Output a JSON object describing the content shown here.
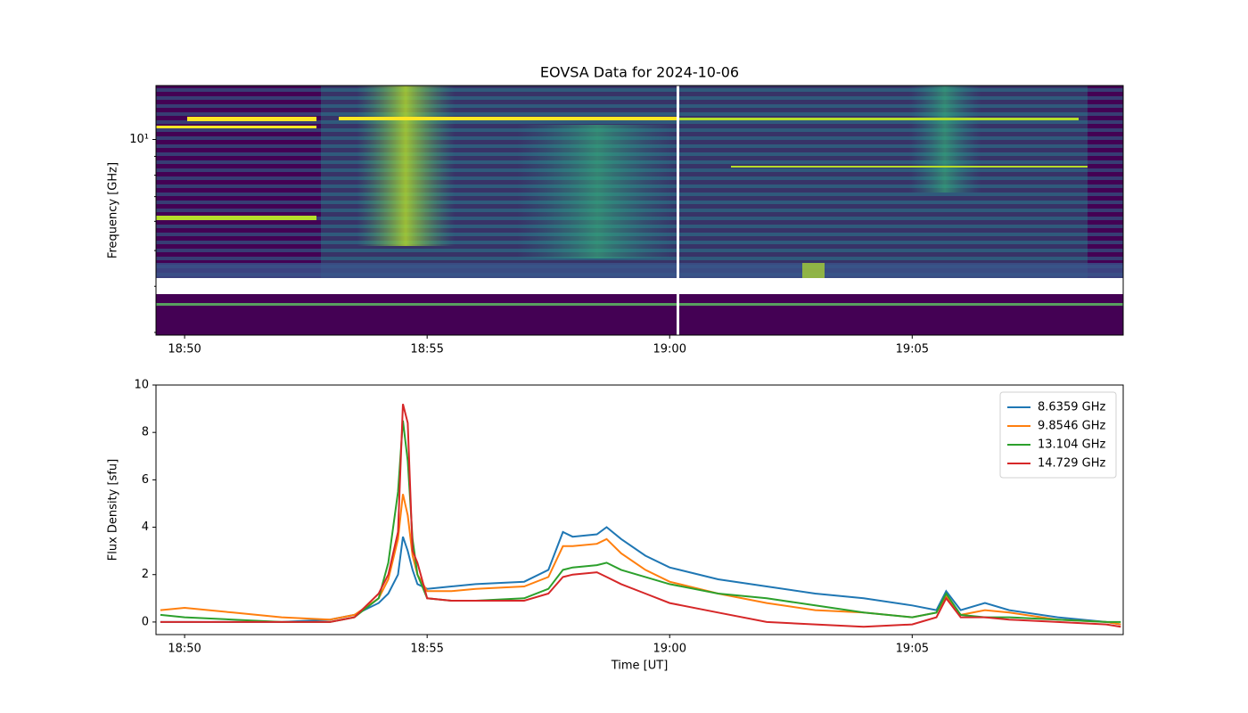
{
  "chart_data": [
    {
      "type": "heatmap",
      "title": "EOVSA Data for 2024-10-06",
      "ylabel": "Frequency [GHz]",
      "ylog": true,
      "xlim": [
        1129.41,
        1149.35
      ],
      "xticks": [
        {
          "value": 1130,
          "label": "18:50"
        },
        {
          "value": 1135,
          "label": "18:55"
        },
        {
          "value": 1140,
          "label": "19:00"
        },
        {
          "value": 1145,
          "label": "19:05"
        }
      ],
      "ylim": [
        2.95,
        14
      ],
      "yticks": [
        {
          "value": 10,
          "label": "10¹"
        }
      ],
      "yminorticks": [
        3,
        4,
        5,
        6,
        7,
        8,
        9
      ]
    },
    {
      "type": "line",
      "xlabel": "Time [UT]",
      "ylabel": "Flux Density [sfu]",
      "legend": "upper right",
      "xlim": [
        1129.41,
        1149.35
      ],
      "xticks": [
        {
          "value": 1130,
          "label": "18:50"
        },
        {
          "value": 1135,
          "label": "18:55"
        },
        {
          "value": 1140,
          "label": "19:00"
        },
        {
          "value": 1145,
          "label": "19:05"
        }
      ],
      "ylim": [
        -0.53,
        10
      ],
      "yticks": [
        0,
        2,
        4,
        6,
        8,
        10
      ],
      "x": [
        1129.5,
        1130,
        1131,
        1132,
        1133,
        1133.5,
        1134,
        1134.2,
        1134.4,
        1134.5,
        1134.6,
        1134.7,
        1134.8,
        1135,
        1135.5,
        1136,
        1137,
        1137.5,
        1137.8,
        1138,
        1138.5,
        1138.7,
        1139,
        1139.5,
        1140,
        1141,
        1142,
        1143,
        1144,
        1145,
        1145.5,
        1145.7,
        1146,
        1146.5,
        1147,
        1148,
        1149,
        1149.3
      ],
      "series": [
        {
          "name": "8.6359 GHz",
          "color": "#1f77b4",
          "values": [
            0.0,
            0.0,
            0.0,
            0.0,
            0.1,
            0.3,
            0.8,
            1.2,
            2.0,
            3.6,
            3.0,
            2.2,
            1.6,
            1.4,
            1.5,
            1.6,
            1.7,
            2.2,
            3.8,
            3.6,
            3.7,
            4.0,
            3.5,
            2.8,
            2.3,
            1.8,
            1.5,
            1.2,
            1.0,
            0.7,
            0.5,
            1.3,
            0.5,
            0.8,
            0.5,
            0.2,
            0.0,
            -0.1
          ]
        },
        {
          "name": "9.8546 GHz",
          "color": "#ff7f0e",
          "values": [
            0.5,
            0.6,
            0.4,
            0.2,
            0.1,
            0.3,
            1.0,
            1.8,
            3.5,
            5.4,
            4.5,
            2.8,
            2.0,
            1.3,
            1.3,
            1.4,
            1.5,
            1.9,
            3.2,
            3.2,
            3.3,
            3.5,
            2.9,
            2.2,
            1.7,
            1.2,
            0.8,
            0.5,
            0.4,
            0.2,
            0.4,
            1.1,
            0.3,
            0.5,
            0.4,
            0.1,
            0.0,
            -0.1
          ]
        },
        {
          "name": "13.104 GHz",
          "color": "#2ca02c",
          "values": [
            0.3,
            0.2,
            0.1,
            0.0,
            0.0,
            0.2,
            1.0,
            2.5,
            5.5,
            8.5,
            6.8,
            3.5,
            2.0,
            1.0,
            0.9,
            0.9,
            1.0,
            1.4,
            2.2,
            2.3,
            2.4,
            2.5,
            2.2,
            1.9,
            1.6,
            1.2,
            1.0,
            0.7,
            0.4,
            0.2,
            0.4,
            1.2,
            0.3,
            0.2,
            0.2,
            0.1,
            0.0,
            0.0
          ]
        },
        {
          "name": "14.729 GHz",
          "color": "#d62728",
          "values": [
            0.0,
            0.0,
            0.0,
            0.0,
            0.0,
            0.2,
            1.2,
            2.0,
            3.8,
            9.2,
            8.4,
            3.0,
            2.5,
            1.0,
            0.9,
            0.9,
            0.9,
            1.2,
            1.9,
            2.0,
            2.1,
            1.9,
            1.6,
            1.2,
            0.8,
            0.4,
            0.0,
            -0.1,
            -0.2,
            -0.1,
            0.2,
            1.0,
            0.2,
            0.2,
            0.1,
            0.0,
            -0.1,
            -0.2
          ]
        }
      ]
    }
  ]
}
